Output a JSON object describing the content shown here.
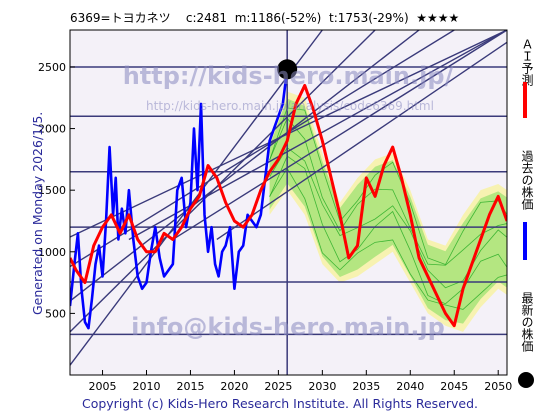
{
  "header": {
    "code_name": "6369=トヨカネツ",
    "current": "c:2481",
    "min": "m:1186(-52%)",
    "target": "t:1753(-29%)",
    "rating": "★★★★"
  },
  "side_text": "Generated on Monday 2026/1/5.",
  "footer": "Copyright (c) Kids-Hero Research Institute. All Rights Reserved.",
  "watermarks": {
    "top": "http://kids-hero.main.jp/",
    "mid": "http://kids-hero.main.jp/analysis/code6369.html",
    "bottom": "info@kids-hero.main.jp"
  },
  "legend": [
    {
      "label": "ＡＩ予測",
      "color": "#ff0000"
    },
    {
      "label": "過去の株価",
      "color": "#0000ff"
    },
    {
      "label": "最新の株価",
      "color": "#000000"
    }
  ],
  "colors": {
    "band_light": "#f7f2a8",
    "band_green": "#7ddc5a",
    "band_lines": "#22aa22",
    "prediction": "#ff0000",
    "history": "#0000ff",
    "channel": "#3a3a7a",
    "plot_bg": "#ebe6f3"
  },
  "chart_data": {
    "type": "line",
    "xlim": [
      2001.3,
      2051
    ],
    "ylim": [
      0,
      2800
    ],
    "x_ticks": [
      2005,
      2010,
      2015,
      2020,
      2025,
      2030,
      2035,
      2040,
      2045,
      2050
    ],
    "y_ticks": [
      500,
      1000,
      1500,
      2000,
      2500
    ],
    "hlines": [
      330,
      755,
      1200,
      1650,
      2100,
      2500
    ],
    "vline_x": 2026,
    "latest_point": {
      "x": 2026,
      "y": 2481
    },
    "channel_lines": [
      {
        "x": [
          2001.3,
          2030
        ],
        "y": [
          80,
          2800
        ]
      },
      {
        "x": [
          2001.3,
          2036
        ],
        "y": [
          350,
          2800
        ]
      },
      {
        "x": [
          2001.3,
          2041
        ],
        "y": [
          600,
          2800
        ]
      },
      {
        "x": [
          2001.3,
          2045
        ],
        "y": [
          880,
          2800
        ]
      },
      {
        "x": [
          2001.3,
          2051
        ],
        "y": [
          1120,
          2800
        ]
      },
      {
        "x": [
          2008,
          2051
        ],
        "y": [
          1100,
          2800
        ]
      },
      {
        "x": [
          2013,
          2051
        ],
        "y": [
          1100,
          2800
        ]
      },
      {
        "x": [
          2018,
          2051
        ],
        "y": [
          1100,
          2700
        ]
      }
    ],
    "series": [
      {
        "name": "過去の株価",
        "x": [
          2001.3,
          2001.8,
          2002.2,
          2002.6,
          2003.0,
          2003.4,
          2003.8,
          2004.2,
          2004.6,
          2005.0,
          2005.4,
          2005.8,
          2006.2,
          2006.5,
          2006.8,
          2007.2,
          2007.6,
          2008.0,
          2008.5,
          2009.0,
          2009.5,
          2010.0,
          2010.5,
          2011.0,
          2011.5,
          2012.0,
          2012.5,
          2013.0,
          2013.5,
          2014.0,
          2014.5,
          2015.0,
          2015.4,
          2015.8,
          2016.2,
          2016.6,
          2017.0,
          2017.4,
          2017.8,
          2018.2,
          2018.6,
          2019.0,
          2019.5,
          2020.0,
          2020.5,
          2021.0,
          2021.5,
          2022.0,
          2022.5,
          2023.0,
          2023.5,
          2024.0,
          2024.5,
          2025.0,
          2025.5,
          2026.0
        ],
        "y": [
          560,
          900,
          1150,
          700,
          430,
          380,
          620,
          900,
          1050,
          800,
          1250,
          1850,
          1300,
          1600,
          1100,
          1350,
          1150,
          1500,
          1100,
          800,
          700,
          750,
          1000,
          1200,
          950,
          800,
          850,
          900,
          1500,
          1600,
          1200,
          1400,
          2000,
          1500,
          2200,
          1300,
          1000,
          1200,
          900,
          800,
          1000,
          1050,
          1200,
          700,
          1000,
          1050,
          1300,
          1250,
          1200,
          1300,
          1600,
          1900,
          2000,
          2100,
          2200,
          2481
        ]
      },
      {
        "name": "ＡＩ予測",
        "x": [
          2001.3,
          2002,
          2003,
          2004,
          2005,
          2006,
          2007,
          2008,
          2009,
          2010,
          2011,
          2012,
          2013,
          2014,
          2015,
          2016,
          2017,
          2018,
          2019,
          2020,
          2021,
          2022,
          2023,
          2024,
          2025,
          2026,
          2027,
          2028,
          2029,
          2030,
          2031,
          2032,
          2033,
          2034,
          2035,
          2036,
          2037,
          2038,
          2039,
          2040,
          2041,
          2042,
          2043,
          2044,
          2045,
          2046,
          2047,
          2048,
          2049,
          2050,
          2051
        ],
        "y": [
          950,
          850,
          750,
          1050,
          1200,
          1300,
          1150,
          1300,
          1100,
          1000,
          1000,
          1150,
          1100,
          1200,
          1350,
          1450,
          1700,
          1600,
          1400,
          1250,
          1200,
          1300,
          1500,
          1650,
          1750,
          1900,
          2200,
          2350,
          2150,
          1900,
          1600,
          1300,
          950,
          1050,
          1600,
          1450,
          1700,
          1850,
          1600,
          1300,
          950,
          800,
          650,
          500,
          400,
          700,
          900,
          1100,
          1300,
          1450,
          1250
        ]
      }
    ],
    "band": {
      "x": [
        2024,
        2026,
        2028,
        2030,
        2032,
        2034,
        2036,
        2038,
        2040,
        2042,
        2044,
        2046,
        2048,
        2050,
        2051
      ],
      "upper": [
        1900,
        2300,
        2250,
        1800,
        1400,
        1600,
        1750,
        1800,
        1500,
        1100,
        1050,
        1300,
        1500,
        1550,
        1500
      ],
      "lower": [
        1300,
        1500,
        1300,
        900,
        750,
        800,
        900,
        1000,
        750,
        500,
        400,
        350,
        550,
        700,
        650
      ]
    }
  }
}
